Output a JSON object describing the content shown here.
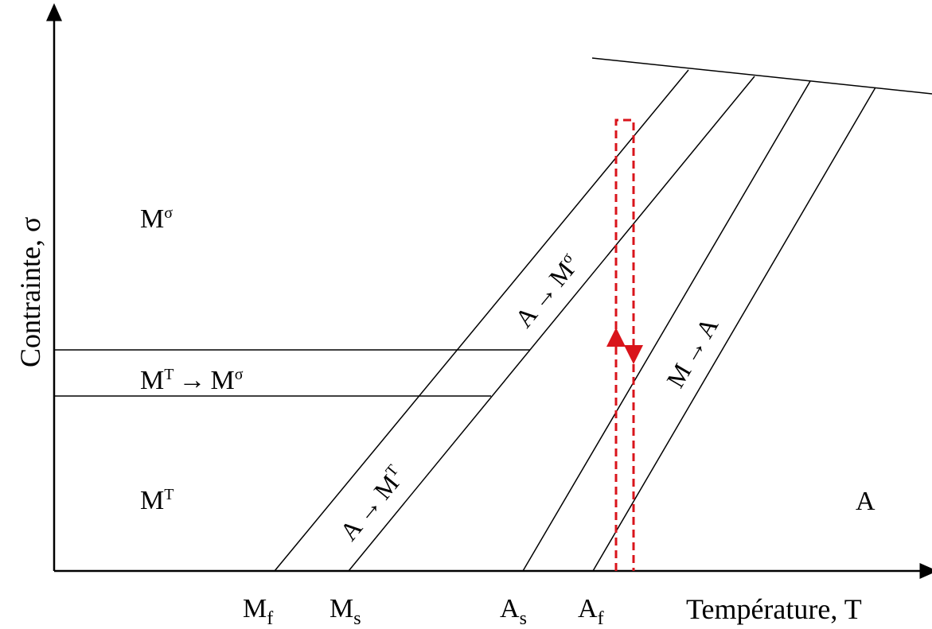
{
  "axes": {
    "y_title": "Contrainte, σ",
    "x_title": "Température, T"
  },
  "temperature_ticks": [
    {
      "base": "M",
      "sub": "f"
    },
    {
      "base": "M",
      "sub": "s"
    },
    {
      "base": "A",
      "sub": "s"
    },
    {
      "base": "A",
      "sub": "f"
    }
  ],
  "regions": {
    "m_sigma": {
      "base": "M",
      "sup": "σ"
    },
    "mt_to_msigma": {
      "base1": "M",
      "sup1": "T",
      "arrow": "→",
      "base2": "M",
      "sup2": "σ"
    },
    "m_t": {
      "base": "M",
      "sup": "T"
    },
    "austenite": "A"
  },
  "bands": {
    "a_to_mt": {
      "base1": "A",
      "arrow": "→",
      "base2": "M",
      "sup2": "T"
    },
    "a_to_msigma": {
      "base1": "A",
      "arrow": "→",
      "base2": "M",
      "sup2": "σ"
    },
    "m_to_a": {
      "base1": "M",
      "arrow": "→",
      "base2": "A"
    }
  },
  "colors": {
    "lines": "#000000",
    "load_path": "#d9141b"
  }
}
